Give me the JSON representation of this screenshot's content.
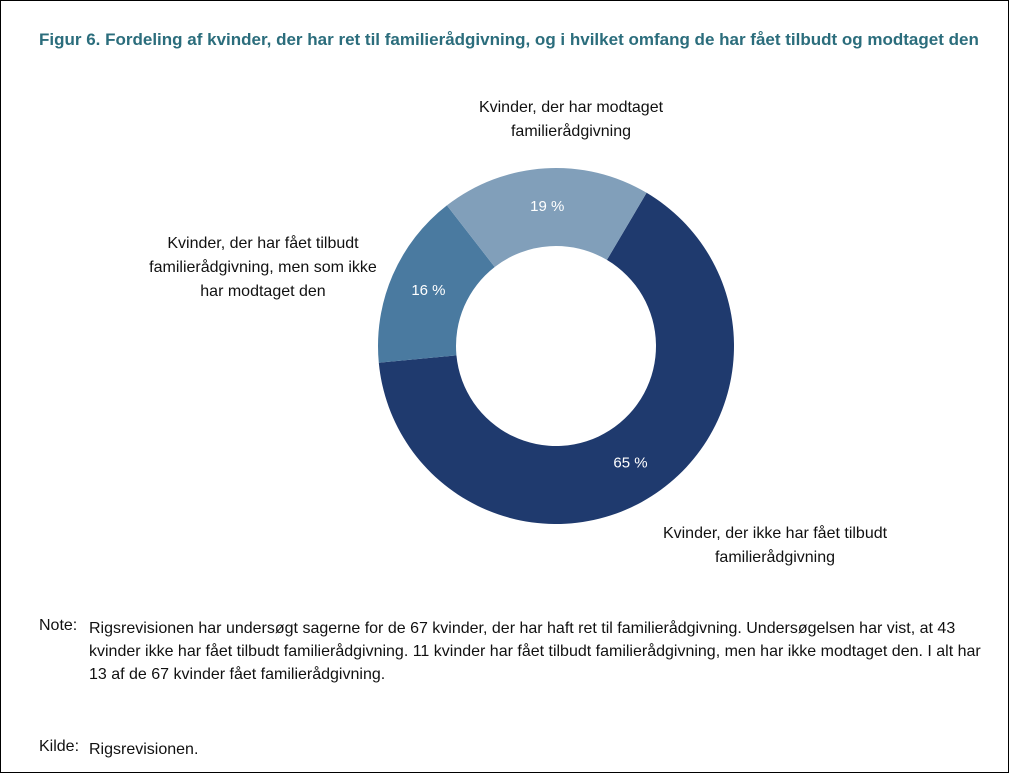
{
  "chart_data": {
    "type": "pie",
    "title": "Figur 6. Fordeling af kvinder, der har ret til familierådgivning, og i hvilket omfang de har fået tilbudt og modtaget den",
    "categories": [
      "Kvinder, der ikke har fået tilbudt familierådgivning",
      "Kvinder, der har fået tilbudt familierådgivning, men som ikke har modtaget den",
      "Kvinder, der har modtaget familierådgivning"
    ],
    "values": [
      65,
      16,
      19
    ],
    "value_labels": [
      "65 %",
      "16 %",
      "19 %"
    ],
    "colors": [
      "#1f3a6e",
      "#4a7aa0",
      "#819fba"
    ]
  },
  "note": {
    "label": "Note:",
    "text": "Rigsrevisionen har undersøgt sagerne for de 67 kvinder, der har haft ret til familierådgivning. Undersøgelsen har vist, at 43 kvinder ikke har fået tilbudt familierådgivning. 11 kvinder har fået tilbudt familierådgivning, men har ikke modtaget den. I alt har 13 af de 67 kvinder fået familie­rådgivning."
  },
  "source": {
    "label": "Kilde:",
    "text": "Rigsrevisionen."
  }
}
